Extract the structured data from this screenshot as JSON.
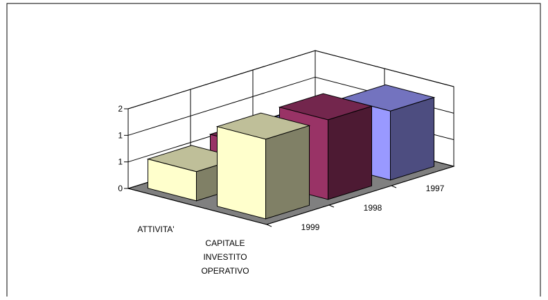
{
  "chart_data": {
    "type": "bar3d",
    "categories": [
      "ATTIVITA'",
      "CAPITALE INVESTITO OPERATIVO"
    ],
    "series": [
      {
        "name": "1997",
        "color": "#9999ff",
        "values": [
          0.6,
          1.3
        ]
      },
      {
        "name": "1998",
        "color": "#993366",
        "values": [
          0.65,
          1.5
        ]
      },
      {
        "name": "1999",
        "color": "#ffffcc",
        "values": [
          0.55,
          1.5
        ]
      }
    ],
    "ylim": [
      0,
      1.5
    ],
    "yticks": [
      0,
      {
        "value": 0.5,
        "label": "1"
      },
      {
        "value": 1,
        "label": "1"
      },
      {
        "value": 1.5,
        "label": "2"
      }
    ],
    "grid": true
  }
}
